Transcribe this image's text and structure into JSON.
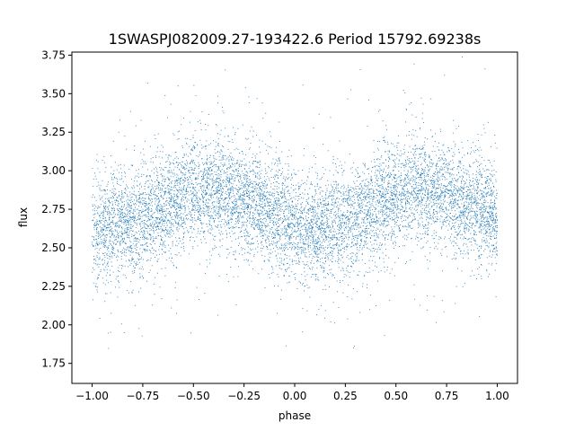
{
  "chart_data": {
    "type": "scatter",
    "title": "1SWASPJ082009.27-193422.6 Period 15792.69238s",
    "xlabel": "phase",
    "ylabel": "flux",
    "xlim": [
      -1.1,
      1.1
    ],
    "ylim": [
      1.62,
      3.77
    ],
    "xticks": [
      -1.0,
      -0.75,
      -0.5,
      -0.25,
      0.0,
      0.25,
      0.5,
      0.75,
      1.0
    ],
    "xtick_labels": [
      "−1.00",
      "−0.75",
      "−0.50",
      "−0.25",
      "0.00",
      "0.25",
      "0.50",
      "0.75",
      "1.00"
    ],
    "yticks": [
      1.75,
      2.0,
      2.25,
      2.5,
      2.75,
      3.0,
      3.25,
      3.5,
      3.75
    ],
    "ytick_labels": [
      "1.75",
      "2.00",
      "2.25",
      "2.50",
      "2.75",
      "3.00",
      "3.25",
      "3.50",
      "3.75"
    ],
    "grid": false,
    "marker_color": "#1f77b4",
    "series": [
      {
        "x": [
          -1.0,
          -0.95,
          -0.9,
          -0.85,
          -0.8,
          -0.75,
          -0.7,
          -0.65,
          -0.6,
          -0.55,
          -0.5,
          -0.45,
          -0.4,
          -0.35,
          -0.3,
          -0.25,
          -0.2,
          -0.15,
          -0.1,
          -0.05,
          0.0,
          0.05,
          0.1,
          0.15,
          0.2,
          0.25,
          0.3,
          0.35,
          0.4,
          0.45,
          0.5,
          0.55,
          0.6,
          0.65,
          0.7,
          0.75,
          0.8,
          0.85,
          0.9,
          0.95,
          1.0
        ],
        "y": [
          2.63,
          2.62,
          2.63,
          2.64,
          2.66,
          2.69,
          2.73,
          2.77,
          2.81,
          2.84,
          2.86,
          2.87,
          2.87,
          2.86,
          2.84,
          2.81,
          2.78,
          2.75,
          2.72,
          2.69,
          2.66,
          2.63,
          2.62,
          2.63,
          2.64,
          2.66,
          2.69,
          2.73,
          2.77,
          2.81,
          2.84,
          2.86,
          2.87,
          2.87,
          2.86,
          2.84,
          2.81,
          2.78,
          2.75,
          2.72,
          2.69
        ],
        "scatter_sigma": 0.17,
        "point_count": 9000
      }
    ]
  }
}
